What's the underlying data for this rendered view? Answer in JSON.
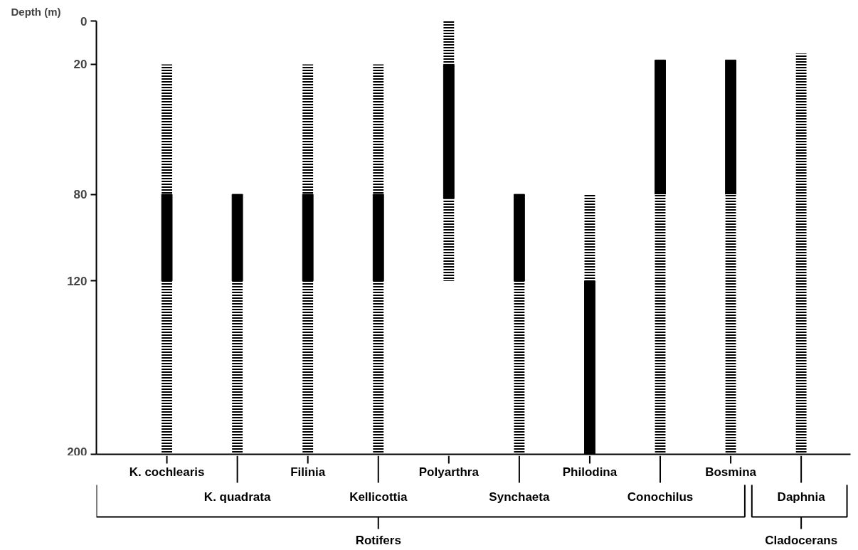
{
  "chart_data": {
    "type": "bar",
    "ylabel": "Depth (m)",
    "categories": [
      "K. cochlearis",
      "K. quadrata",
      "Filinia",
      "Kellicottia",
      "Polyarthra",
      "Synchaeta",
      "Philodina",
      "Conochilus",
      "Bosmina",
      "Daphnia"
    ],
    "series": [
      {
        "color": "#000000",
        "line_style": "dashed",
        "base": [
          20,
          null,
          20,
          20,
          0,
          null,
          80,
          null,
          null,
          15
        ],
        "values": [
          60,
          null,
          60,
          60,
          20,
          null,
          40,
          null,
          null,
          185
        ]
      },
      {
        "color": "#000000",
        "line_style": "solid",
        "base": [
          80,
          80,
          80,
          80,
          20,
          80,
          120,
          18,
          18,
          null
        ],
        "values": [
          40,
          40,
          40,
          40,
          62,
          40,
          80,
          62,
          62,
          null
        ]
      },
      {
        "color": "#000000",
        "line_style": "dashed",
        "base": [
          120,
          120,
          120,
          120,
          82,
          120,
          null,
          80,
          80,
          null
        ],
        "values": [
          80,
          80,
          80,
          80,
          38,
          80,
          null,
          120,
          120,
          null
        ]
      }
    ],
    "ylim": [
      200,
      0
    ],
    "yticks": [
      0,
      20,
      80,
      120,
      200
    ],
    "annotations": [
      "Rotifers",
      "Cladocerans"
    ]
  }
}
